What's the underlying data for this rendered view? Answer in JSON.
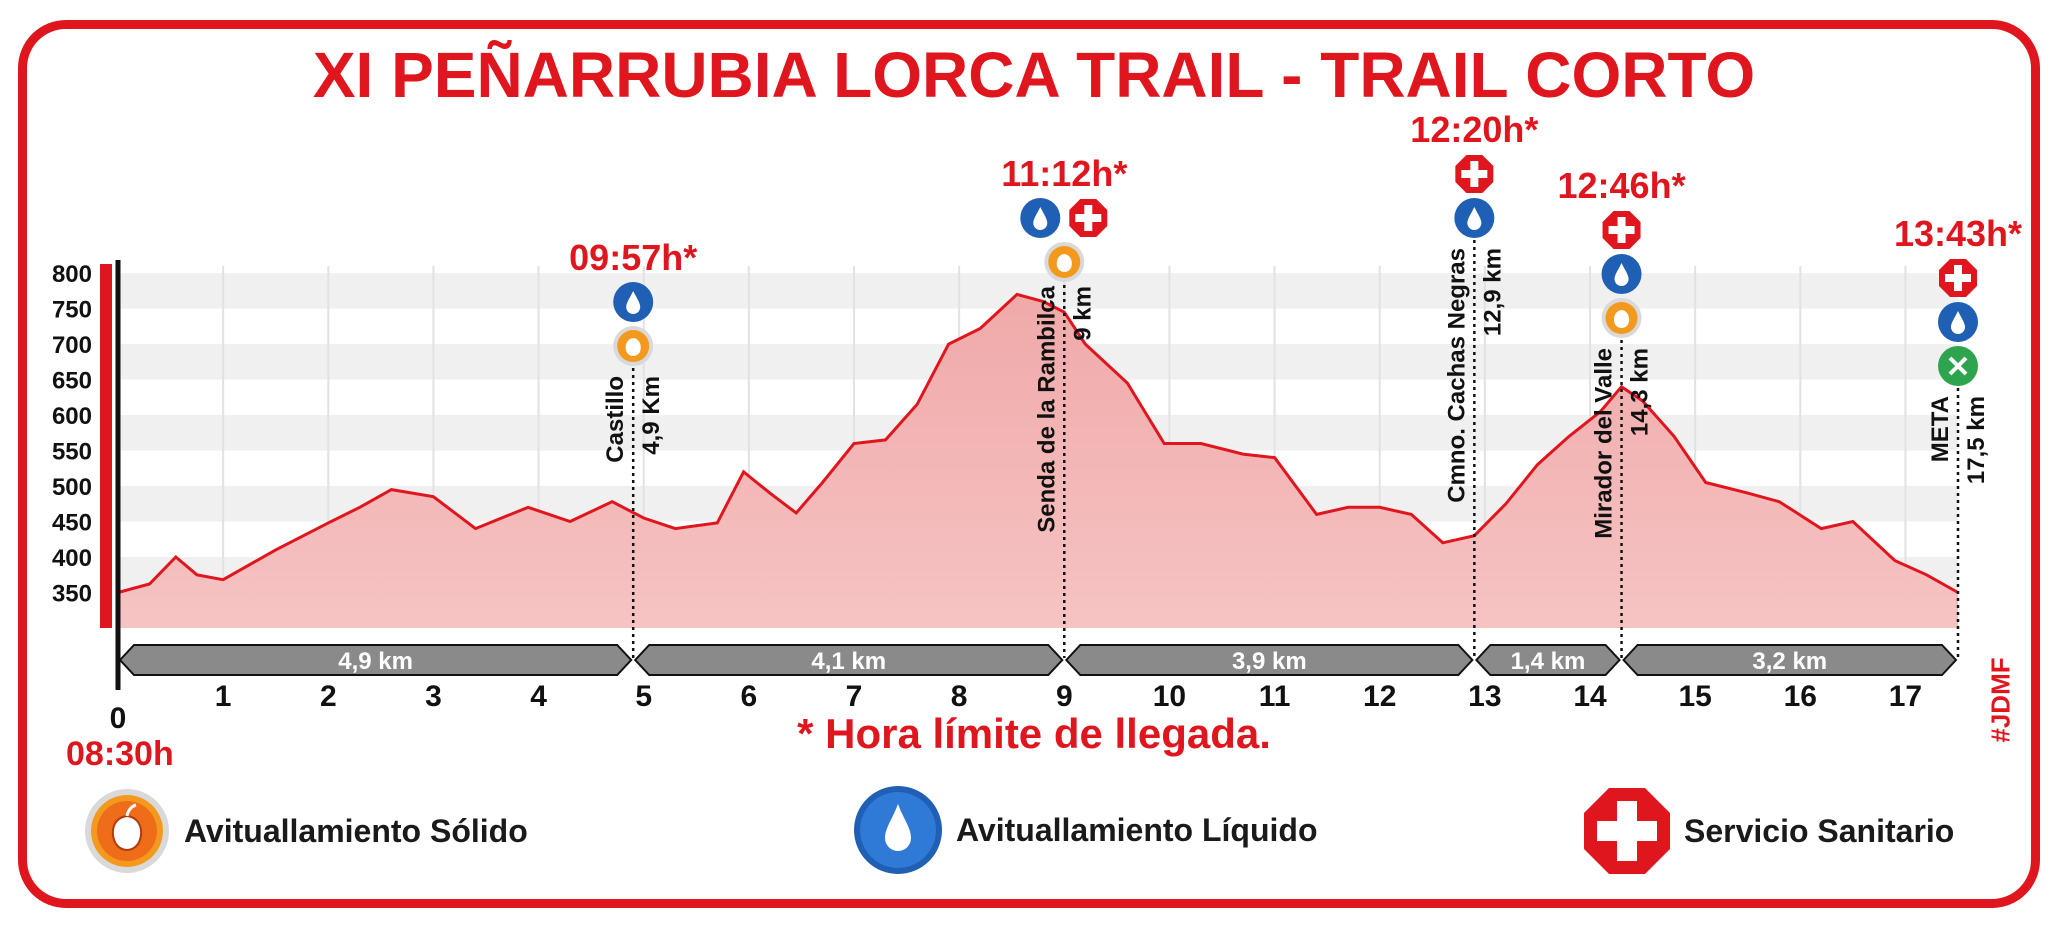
{
  "title": "XI PEÑARRUBIA LORCA TRAIL - TRAIL CORTO",
  "note": "* Hora límite de llegada.",
  "start_time": "08:30h",
  "credit": "#JDMF",
  "legend": [
    {
      "icon": "solid-aid-icon",
      "label": "Avituallamiento Sólido"
    },
    {
      "icon": "liquid-aid-icon",
      "label": "Avituallamiento Líquido"
    },
    {
      "icon": "medical-cross-icon",
      "label": "Servicio Sanitario"
    }
  ],
  "colors": {
    "accent": "#e0161e",
    "fill": "#f6c3c3",
    "line": "#e0161e",
    "blue": "#1f5fb4",
    "green": "#2ea44f",
    "segment": "#8a8a8a"
  },
  "chart_data": {
    "type": "area",
    "xlim": [
      0,
      17.5
    ],
    "ylim": [
      300,
      810
    ],
    "x_ticks": [
      0,
      1,
      2,
      3,
      4,
      5,
      6,
      7,
      8,
      9,
      10,
      11,
      12,
      13,
      14,
      15,
      16,
      17
    ],
    "y_ticks": [
      350,
      400,
      450,
      500,
      550,
      600,
      650,
      700,
      750,
      800
    ],
    "x": [
      0,
      0.3,
      0.55,
      0.75,
      1.0,
      1.5,
      2.0,
      2.3,
      2.6,
      3.0,
      3.4,
      3.9,
      4.3,
      4.7,
      5.0,
      5.3,
      5.7,
      5.95,
      6.2,
      6.45,
      6.7,
      7.0,
      7.3,
      7.6,
      7.9,
      8.2,
      8.55,
      8.8,
      9.0,
      9.2,
      9.6,
      9.95,
      10.3,
      10.7,
      11.0,
      11.4,
      11.7,
      12.0,
      12.3,
      12.6,
      12.9,
      13.2,
      13.5,
      13.8,
      14.1,
      14.3,
      14.5,
      14.8,
      15.1,
      15.5,
      15.8,
      16.2,
      16.5,
      16.9,
      17.2,
      17.5
    ],
    "y": [
      350,
      362,
      400,
      375,
      368,
      410,
      448,
      470,
      495,
      485,
      440,
      470,
      450,
      478,
      455,
      440,
      448,
      520,
      490,
      462,
      505,
      560,
      565,
      615,
      700,
      722,
      770,
      760,
      745,
      700,
      645,
      560,
      560,
      545,
      540,
      460,
      470,
      470,
      460,
      420,
      430,
      475,
      530,
      570,
      605,
      640,
      620,
      570,
      505,
      490,
      478,
      440,
      450,
      395,
      375,
      350
    ],
    "segments": [
      "4,9 km",
      "4,1 km",
      "3,9 km",
      "1,4 km",
      "3,2 km"
    ],
    "segment_bounds": [
      0,
      4.9,
      9.0,
      12.9,
      14.3,
      17.5
    ],
    "checkpoints": [
      {
        "km": 4.9,
        "name": "Castillo",
        "dist": "4,9 Km",
        "time": "09:57h*",
        "icons": [
          "liquid",
          "solid"
        ]
      },
      {
        "km": 9.0,
        "name": "Senda de la Rambilca",
        "dist": "9 km",
        "time": "11:12h*",
        "icons": [
          "liquid",
          "medical",
          "solid"
        ]
      },
      {
        "km": 12.9,
        "name": "Cmno. Cachas Negras",
        "dist": "12,9 km",
        "time": "12:20h*",
        "icons": [
          "medical",
          "liquid"
        ]
      },
      {
        "km": 14.3,
        "name": "Mirador del Valle",
        "dist": "14,3 km",
        "time": "12:46h*",
        "icons": [
          "medical",
          "liquid",
          "solid"
        ]
      },
      {
        "km": 17.5,
        "name": "META",
        "dist": "17,5 km",
        "time": "13:43h*",
        "icons": [
          "medical",
          "liquid",
          "finish"
        ]
      }
    ]
  }
}
